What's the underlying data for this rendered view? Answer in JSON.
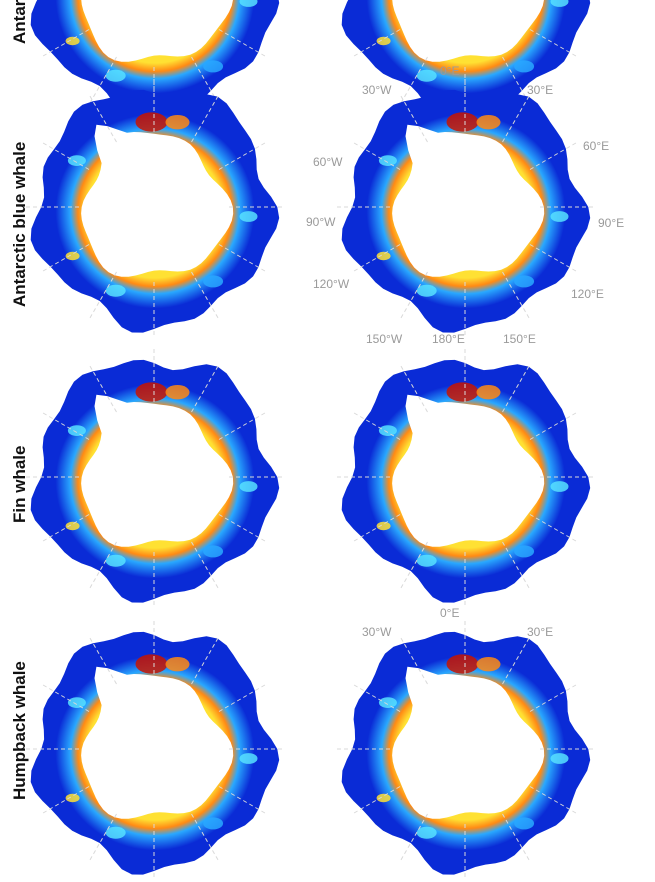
{
  "rows": [
    {
      "label": "Antarctic minke whale"
    },
    {
      "label": "Antarctic blue whale"
    },
    {
      "label": "Fin whale"
    },
    {
      "label": "Humpback whale"
    }
  ],
  "coordinates": {
    "lon_0": "0°E",
    "lon_30w": "30°W",
    "lon_30e": "30°E",
    "lon_60w": "60°W",
    "lon_60e": "60°E",
    "lon_90w": "90°W",
    "lon_90e": "90°E",
    "lon_120w": "120°W",
    "lon_120e": "120°E",
    "lon_150w": "150°W",
    "lon_180e": "180°E",
    "lon_150e": "150°E"
  },
  "colors": {
    "low": "#0a2bd6",
    "mid": "#29a8ff",
    "cyan": "#57e0ff",
    "yellow": "#ffe133",
    "orange": "#ff8a14",
    "high": "#c81400",
    "graticule": "#d9d9d9",
    "label_gray": "#9a9a9a"
  }
}
